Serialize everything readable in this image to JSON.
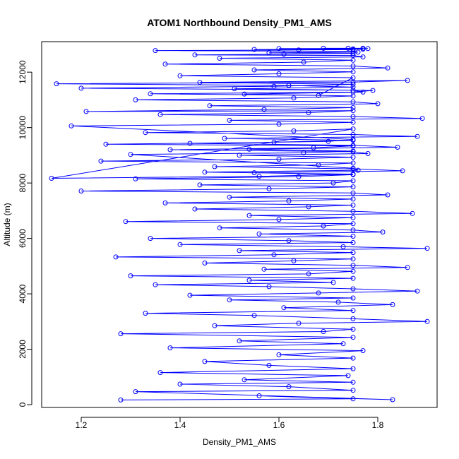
{
  "chart_data": {
    "type": "scatter",
    "title": "ATOM1 Northbound Density_PM1_AMS",
    "xlabel": "Density_PM1_AMS",
    "ylabel": "Altitude (m)",
    "xlim": [
      1.12,
      1.92
    ],
    "ylim": [
      -100,
      13100
    ],
    "xticks": [
      1.2,
      1.4,
      1.6,
      1.8
    ],
    "xtick_labels": [
      "1.2",
      "1.4",
      "1.6",
      "1.8"
    ],
    "yticks": [
      0,
      2000,
      4000,
      6000,
      8000,
      10000,
      12000
    ],
    "ytick_labels": [
      "0",
      "2000",
      "4000",
      "6000",
      "8000",
      "10000",
      "12000"
    ],
    "grid": false,
    "legend": "none",
    "series_color": "#0000ff",
    "markers": "open-circle",
    "connected": true,
    "series": [
      {
        "x": [
          1.28,
          1.75,
          1.56,
          1.83,
          1.31,
          1.75,
          1.62,
          1.4,
          1.75,
          1.53,
          1.74,
          1.36,
          1.75,
          1.58,
          1.45,
          1.75,
          1.6,
          1.77,
          1.38,
          1.73,
          1.52,
          1.75,
          1.28,
          1.69,
          1.75,
          1.47,
          1.64,
          1.9,
          1.75,
          1.55,
          1.33,
          1.75,
          1.61,
          1.83,
          1.72,
          1.5,
          1.75,
          1.42,
          1.68,
          1.88,
          1.75,
          1.58,
          1.35,
          1.71,
          1.54,
          1.75,
          1.3,
          1.66,
          1.75,
          1.57,
          1.86,
          1.75,
          1.45,
          1.63,
          1.75,
          1.27,
          1.59,
          1.75,
          1.52,
          1.9,
          1.73,
          1.4,
          1.75,
          1.62,
          1.34,
          1.75,
          1.56,
          1.81,
          1.75,
          1.48,
          1.69,
          1.75,
          1.29,
          1.6,
          1.75,
          1.54,
          1.87,
          1.75,
          1.43,
          1.66,
          1.75,
          1.37,
          1.62,
          1.75,
          1.5,
          1.82,
          1.75,
          1.2,
          1.58,
          1.75,
          1.44,
          1.71,
          1.75,
          1.31,
          1.64,
          1.75,
          1.55,
          1.85,
          1.75,
          1.47,
          1.68,
          1.75,
          1.24,
          1.6,
          1.75,
          1.52,
          1.78,
          1.75,
          1.38,
          1.67,
          1.75,
          1.25,
          1.59,
          1.75,
          1.49,
          1.88,
          1.75,
          1.33,
          1.63,
          1.75,
          1.14,
          1.56,
          1.75,
          1.45,
          1.76,
          1.75,
          1.3,
          1.65,
          1.75,
          1.54,
          1.84,
          1.75,
          1.42,
          1.7,
          1.75,
          1.18,
          1.6,
          1.75,
          1.5,
          1.89,
          1.75,
          1.36,
          1.66,
          1.75,
          1.21,
          1.57,
          1.75,
          1.46,
          1.8,
          1.75,
          1.31,
          1.63,
          1.75,
          1.53,
          1.77,
          1.75,
          1.2,
          1.59,
          1.75,
          1.44,
          1.86,
          1.75,
          1.15,
          1.62,
          1.75,
          1.51,
          1.79,
          1.75,
          1.34,
          1.68,
          1.75,
          1.4,
          1.6,
          1.75,
          1.55,
          1.82,
          1.75,
          1.37,
          1.65,
          1.75,
          1.48,
          1.77,
          1.75,
          1.43,
          1.61,
          1.75,
          1.58,
          1.76,
          1.75,
          1.35,
          1.64,
          1.75,
          1.55,
          1.77,
          1.75,
          1.6,
          1.78,
          1.74,
          1.69,
          1.77
        ],
        "y": [
          170,
          210,
          320,
          180,
          470,
          520,
          650,
          740,
          810,
          900,
          1050,
          1160,
          1300,
          1420,
          1560,
          1680,
          1800,
          1950,
          2050,
          2200,
          2300,
          2430,
          2560,
          2640,
          2720,
          2850,
          2940,
          3000,
          3100,
          3220,
          3300,
          3400,
          3500,
          3610,
          3700,
          3780,
          3850,
          3950,
          4030,
          4100,
          4180,
          4260,
          4330,
          4410,
          4490,
          4560,
          4650,
          4720,
          4810,
          4890,
          4950,
          5030,
          5110,
          5190,
          5260,
          5330,
          5410,
          5490,
          5560,
          5640,
          5700,
          5780,
          5850,
          5920,
          6000,
          6080,
          6160,
          6230,
          6300,
          6380,
          6450,
          6530,
          6610,
          6680,
          6750,
          6830,
          6900,
          6980,
          7060,
          7140,
          7200,
          7280,
          7350,
          7420,
          7490,
          7570,
          7640,
          7710,
          7790,
          7860,
          7930,
          8000,
          8080,
          8150,
          8230,
          8300,
          8370,
          8440,
          8510,
          8590,
          8650,
          8720,
          8790,
          8860,
          8930,
          9000,
          9060,
          9130,
          9200,
          9270,
          9340,
          9400,
          9470,
          9540,
          9610,
          9680,
          9750,
          9820,
          9880,
          9950,
          8170,
          8240,
          8320,
          8390,
          8460,
          8530,
          9030,
          9090,
          9150,
          9220,
          9290,
          9360,
          9430,
          9500,
          9570,
          10060,
          10120,
          10190,
          10260,
          10330,
          10400,
          10470,
          10540,
          10610,
          10580,
          10650,
          10720,
          10790,
          10860,
          10930,
          11000,
          11070,
          11140,
          11210,
          11280,
          11350,
          11420,
          11490,
          11560,
          11630,
          11700,
          11640,
          11580,
          11520,
          11460,
          11400,
          11340,
          11280,
          11220,
          11160,
          11800,
          11870,
          11940,
          12010,
          12080,
          12150,
          12220,
          12290,
          12360,
          12430,
          12500,
          12550,
          12600,
          12620,
          12650,
          12680,
          12700,
          12720,
          12750,
          12780,
          12800,
          12810,
          12820,
          12830,
          12840,
          12850,
          12850,
          12860,
          12860,
          12860
        ]
      }
    ]
  }
}
